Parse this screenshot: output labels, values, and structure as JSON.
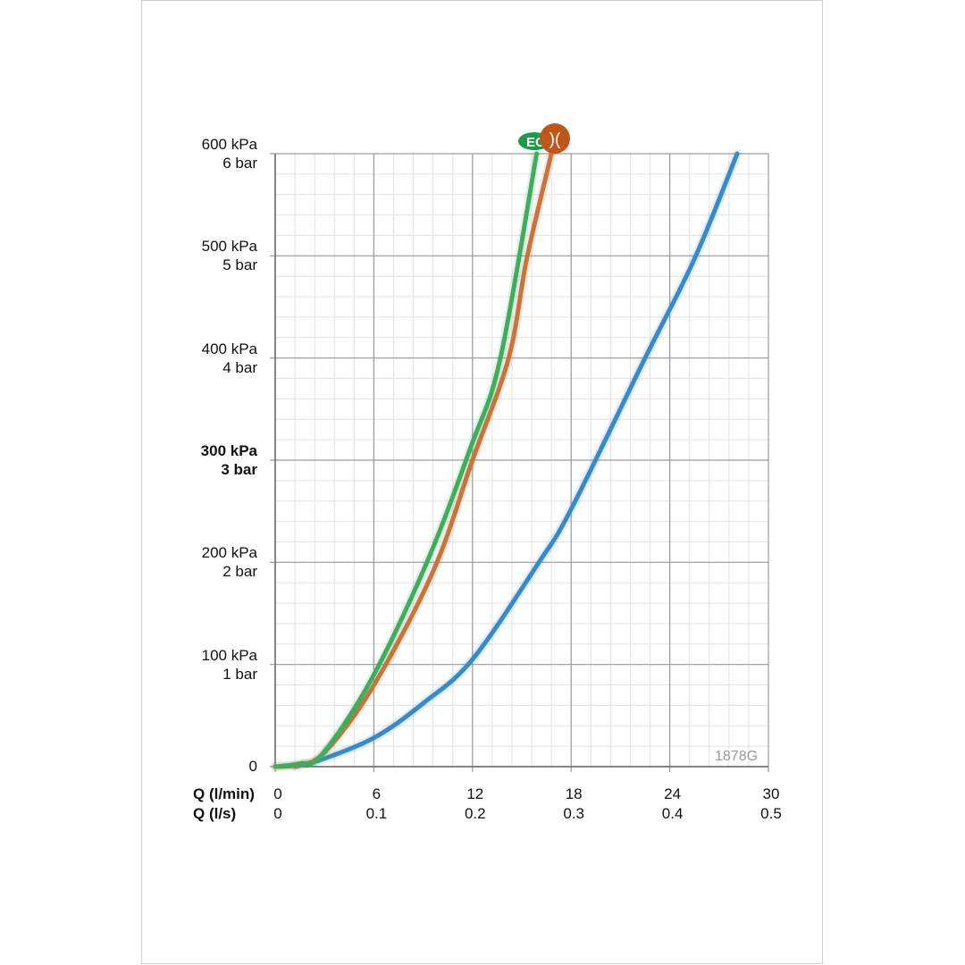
{
  "chart_data": {
    "type": "line",
    "title": "",
    "code_label": "1878G",
    "x_axis": {
      "labels": [
        "Q (l/min)",
        "Q (l/s)"
      ],
      "range": [
        0,
        30
      ],
      "ticks_lmin": [
        "0",
        "6",
        "12",
        "18",
        "24",
        "30"
      ],
      "ticks_ls": [
        "0",
        "0.1",
        "0.2",
        "0.3",
        "0.4",
        "0.5"
      ],
      "minor_step": 1.2
    },
    "y_axis": {
      "range": [
        0,
        600
      ],
      "unit": "kPa",
      "ticks": [
        {
          "kpa": "0",
          "bar": ""
        },
        {
          "kpa": "100 kPa",
          "bar": "1 bar"
        },
        {
          "kpa": "200 kPa",
          "bar": "2 bar"
        },
        {
          "kpa": "300 kPa",
          "bar": "3 bar",
          "bold": true
        },
        {
          "kpa": "400 kPa",
          "bar": "4 bar"
        },
        {
          "kpa": "500 kPa",
          "bar": "5 bar"
        },
        {
          "kpa": "600 kPa",
          "bar": "6 bar"
        }
      ],
      "minor_step": 20
    },
    "grid": true,
    "series": [
      {
        "color": "#3a8ac9",
        "x": [
          1.2,
          3,
          6.1,
          9,
          12,
          16,
          18,
          22.5,
          25.5,
          28.1
        ],
        "y": [
          0,
          8,
          29,
          62,
          105,
          199,
          252,
          400,
          497,
          600
        ]
      },
      {
        "color": "#c8743c",
        "x": [
          0,
          1.5,
          3,
          5.9,
          9.6,
          12,
          14.2,
          15.3,
          16.8
        ],
        "y": [
          0,
          2,
          14,
          77,
          191,
          300,
          400,
          497,
          600
        ]
      },
      {
        "color": "#3fad5e",
        "x": [
          0,
          1.5,
          2.8,
          5.8,
          9.2,
          11.9,
          13.7,
          15.9
        ],
        "y": [
          0,
          3,
          11,
          84,
          199,
          313,
          400,
          600
        ]
      }
    ],
    "markers": [
      {
        "text": "EC",
        "color": "#1a9a4a"
      },
      {
        "text": ")(",
        "color": "#c0561a"
      }
    ]
  }
}
